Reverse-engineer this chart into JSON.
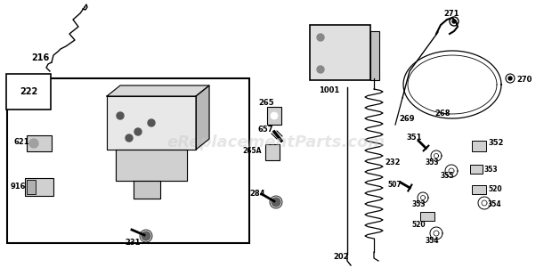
{
  "bg_color": "#ffffff",
  "watermark": "eReplacementParts.com",
  "watermark_color": "#c8c8c8",
  "watermark_alpha": 0.45,
  "figsize": [
    6.2,
    3.01
  ],
  "dpi": 100
}
